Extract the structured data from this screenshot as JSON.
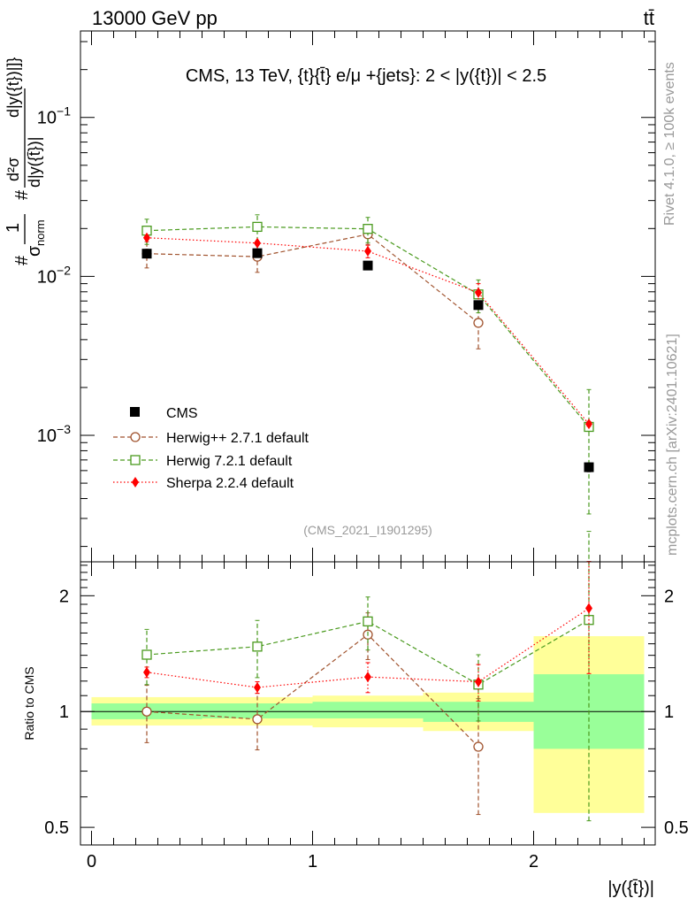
{
  "header": {
    "left": "13000 GeV pp",
    "right": "tt̄"
  },
  "side_labels": {
    "rivet": "Rivet 4.1.0, ≥ 100k events",
    "mcplots": "mcplots.cern.ch [arXiv:2401.10621]"
  },
  "chart_data": [
    {
      "type": "scatter",
      "panel": "main",
      "title": "CMS, 13 TeV, {t}{t̄} e/μ +{jets}: 2 < |y({t})| < 2.5",
      "watermark": "(CMS_2021_I1901295)",
      "ylabel_parts": [
        "#",
        "1",
        "σ",
        "norm",
        "#",
        "d²σ",
        "d|y({t̄})|",
        "d|y({t})|]}"
      ],
      "ylabel_text": "#1/σnorm #d²σ/d|y(t̄)| d|y({t})|]}",
      "yscale": "log",
      "ylim": [
        0.00016,
        0.35
      ],
      "xlim": [
        -0.05,
        2.55
      ],
      "y_ticks": [
        {
          "value": 0.1,
          "base": "10",
          "exp": "−1"
        },
        {
          "value": 0.01,
          "base": "10",
          "exp": "−2"
        },
        {
          "value": 0.001,
          "base": "10",
          "exp": "−3"
        }
      ],
      "x": [
        0.25,
        0.75,
        1.25,
        1.75,
        2.25
      ],
      "series": [
        {
          "name": "CMS",
          "marker": "square-filled",
          "color": "#000000",
          "line": "none",
          "values": [
            0.0139,
            0.014,
            0.0117,
            0.0066,
            0.00063
          ],
          "err_lo": [
            0.0002,
            0.0002,
            0.0002,
            0.0002,
            4e-05
          ],
          "err_hi": [
            0.0002,
            0.0002,
            0.0002,
            0.0002,
            4e-05
          ]
        },
        {
          "name": "Herwig++ 2.7.1 default",
          "marker": "circle-open",
          "color": "#a0522d",
          "line": "dashed",
          "values": [
            0.0139,
            0.0133,
            0.0184,
            0.0051,
            null
          ],
          "err_lo": [
            0.0026,
            0.0027,
            0.0025,
            0.0016,
            null
          ],
          "err_hi": [
            0.0026,
            0.0027,
            0.0025,
            0.0016,
            null
          ]
        },
        {
          "name": "Herwig 7.2.1 default",
          "marker": "square-open",
          "color": "#4a9a1e",
          "line": "dashed",
          "values": [
            0.0194,
            0.0205,
            0.0199,
            0.0077,
            0.00113
          ],
          "err_lo": [
            0.0035,
            0.0039,
            0.0036,
            0.0018,
            0.00081
          ],
          "err_hi": [
            0.0035,
            0.0039,
            0.0036,
            0.0018,
            0.00081
          ]
        },
        {
          "name": "Sherpa 2.2.4 default",
          "marker": "diamond-filled",
          "color": "#ff0000",
          "line": "dotted",
          "values": [
            0.0175,
            0.0162,
            0.0144,
            0.0079,
            0.00118
          ],
          "err_lo": [
            0.0004,
            0.0004,
            0.0013,
            0.0011,
            4e-05
          ],
          "err_hi": [
            0.0004,
            0.0004,
            0.0013,
            0.0011,
            4e-05
          ]
        }
      ]
    },
    {
      "type": "scatter",
      "panel": "ratio",
      "ylabel": "Ratio to CMS",
      "xlabel": "|y({t̄})|",
      "yscale": "log",
      "ylim": [
        0.45,
        2.45
      ],
      "xlim": [
        -0.05,
        2.55
      ],
      "y_ticks": [
        "0.5",
        "1",
        "2"
      ],
      "y_tick_values": [
        0.5,
        1,
        2
      ],
      "x_ticks": [
        "0",
        "1",
        "2"
      ],
      "x_tick_values": [
        0,
        1,
        2
      ],
      "bins": [
        [
          0,
          0.5
        ],
        [
          0.5,
          1
        ],
        [
          1,
          1.5
        ],
        [
          1.5,
          2
        ],
        [
          2,
          2.5
        ]
      ],
      "band_inner": [
        [
          0.955,
          1.05
        ],
        [
          0.96,
          1.05
        ],
        [
          0.96,
          1.06
        ],
        [
          0.94,
          1.06
        ],
        [
          0.8,
          1.25
        ]
      ],
      "band_outer": [
        [
          0.92,
          1.09
        ],
        [
          0.92,
          1.09
        ],
        [
          0.91,
          1.1
        ],
        [
          0.89,
          1.12
        ],
        [
          0.545,
          1.57
        ]
      ],
      "x": [
        0.25,
        0.75,
        1.25,
        1.75,
        2.25
      ],
      "series": [
        {
          "name": "Herwig++ 2.7.1 default",
          "marker": "circle-open",
          "color": "#a0522d",
          "line": "dashed",
          "values": [
            1.0,
            0.955,
            1.585,
            0.81,
            null
          ],
          "err_lo": [
            0.17,
            0.16,
            0.22,
            0.27,
            null
          ],
          "err_hi": [
            0.17,
            0.16,
            0.22,
            0.27,
            null
          ]
        },
        {
          "name": "Herwig 7.2.1 default",
          "marker": "square-open",
          "color": "#4a9a1e",
          "line": "dashed",
          "values": [
            1.405,
            1.475,
            1.715,
            1.175,
            1.73
          ],
          "err_lo": [
            0.23,
            0.25,
            0.27,
            0.23,
            1.21
          ],
          "err_hi": [
            0.23,
            0.25,
            0.27,
            0.23,
            1.21
          ]
        },
        {
          "name": "Sherpa 2.2.4 default",
          "marker": "diamond-filled",
          "color": "#ff0000",
          "line": "dotted",
          "values": [
            1.265,
            1.155,
            1.23,
            1.195,
            1.855
          ],
          "err_lo": [
            0.04,
            0.04,
            0.11,
            0.13,
            0.6
          ],
          "err_hi": [
            0.04,
            0.04,
            0.11,
            0.13,
            0.6
          ]
        }
      ]
    }
  ]
}
